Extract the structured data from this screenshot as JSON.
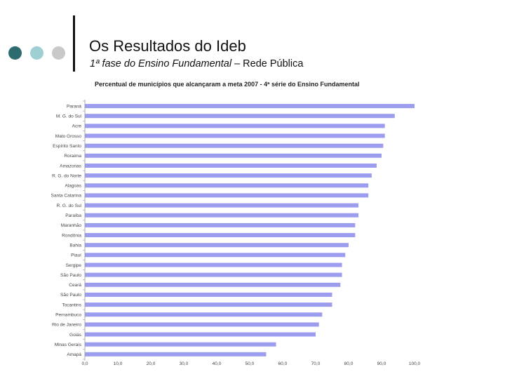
{
  "slide": {
    "title": "Os Resultados do Ideb",
    "subtitle_main": "1ª fase do Ensino Fundamental",
    "subtitle_rest": " – Rede Pública"
  },
  "colors": {
    "dot1": "#2e6b6e",
    "dot2": "#9ecfd3",
    "dot3": "#c9c9c9",
    "bar": "#9d9df0"
  },
  "chart_data": {
    "type": "bar",
    "orientation": "horizontal",
    "title": "Percentual de municípios que alcançaram a meta 2007 - 4ª série do Ensino Fundamental",
    "categories": [
      "Paraná",
      "M. G. do Sul",
      "Acre",
      "Mato Grosso",
      "Espírito Santo",
      "Roraima",
      "Amazonas",
      "R. G. do Norte",
      "Alagoas",
      "Santa Catarina",
      "R. G. do Sul",
      "Paraíba",
      "Maranhão",
      "Rondônia",
      "Bahia",
      "Piauí",
      "Sergipe",
      "São Paulo",
      "Ceará",
      "São Paulo",
      "Tocantins",
      "Pernambuco",
      "Rio de Janeiro",
      "Goiás",
      "Minas Gerais",
      "Amapá"
    ],
    "values": [
      100,
      94,
      91,
      91,
      90.5,
      90,
      88.5,
      87,
      86,
      86,
      83,
      83,
      82,
      82,
      80,
      79,
      78,
      78,
      77.5,
      75,
      75,
      72,
      71,
      70,
      58,
      55
    ],
    "xlim": [
      0,
      100
    ],
    "xticks": [
      "0,0",
      "10,0",
      "20,0",
      "30,0",
      "40,0",
      "50,0",
      "60,0",
      "70,0",
      "80,0",
      "90,0",
      "100,0"
    ],
    "grid": false,
    "legend": "none"
  }
}
